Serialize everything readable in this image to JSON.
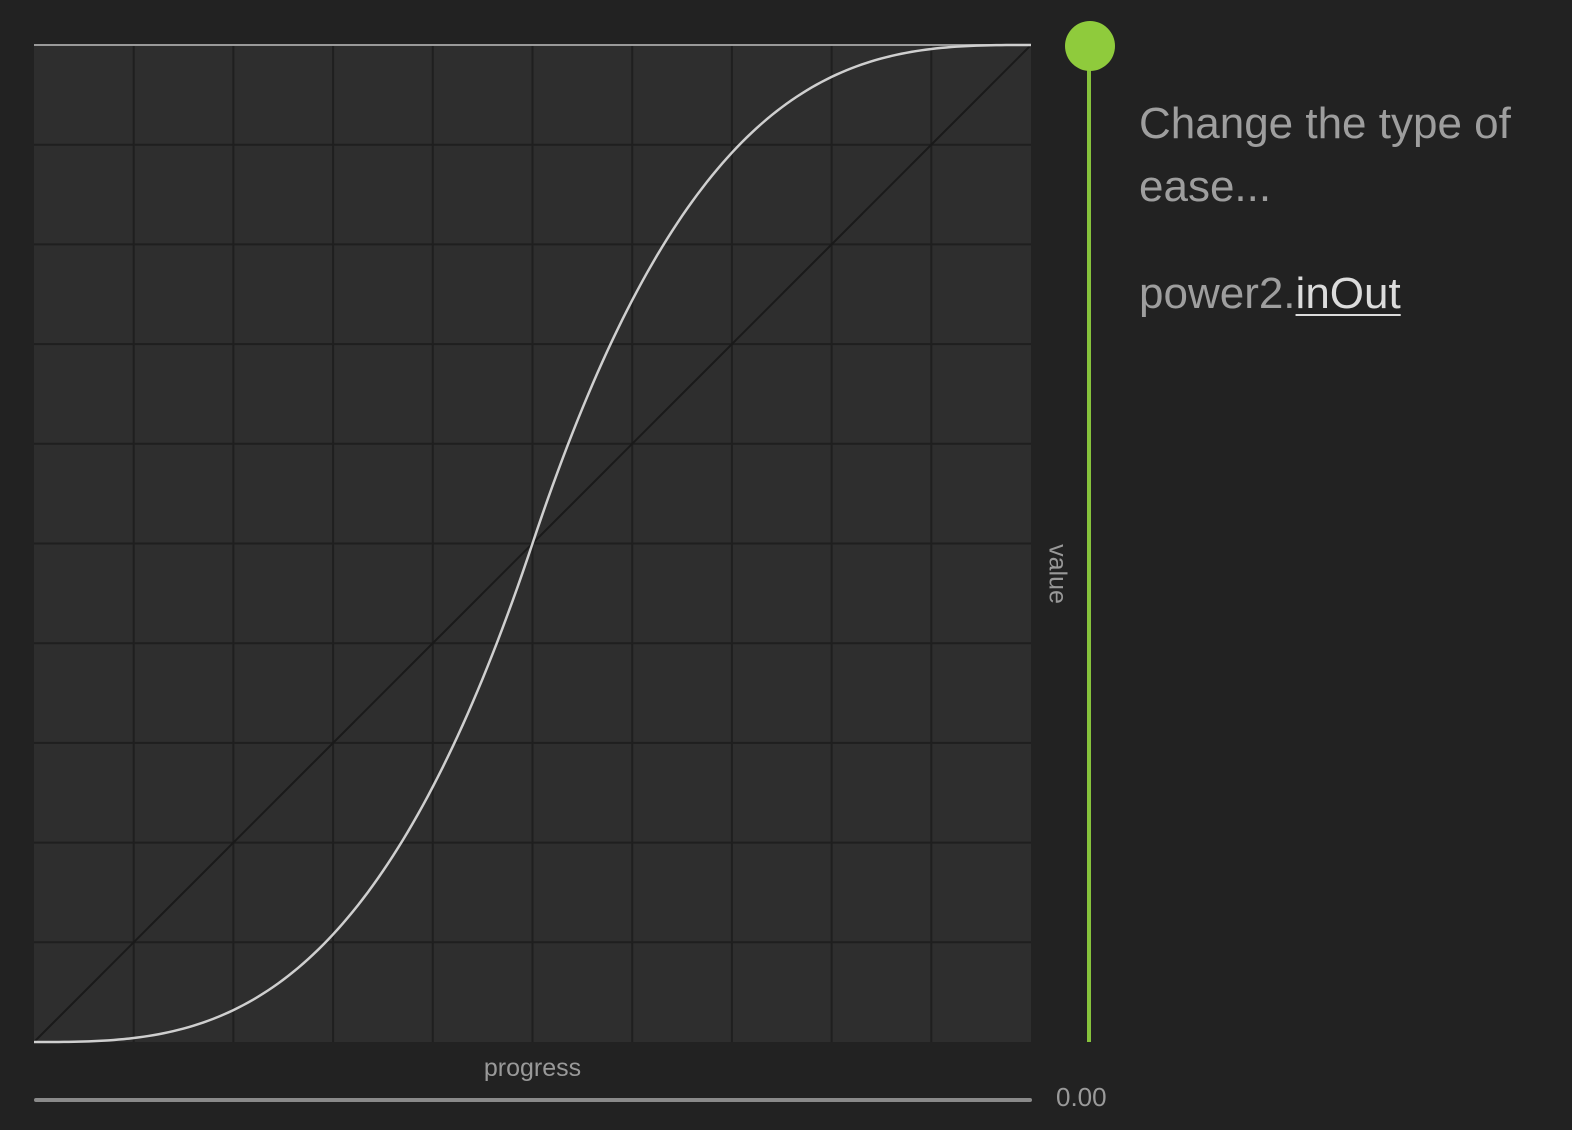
{
  "graph": {
    "progress_label": "progress",
    "value_label": "value",
    "grid_divisions": 10,
    "ease": "power2.inOut",
    "colors": {
      "panel": "#2e2e2e",
      "grid": "#1f1f1f",
      "linear_reference": "#1a1a1a",
      "curve": "#cfcfcf",
      "top_edge": "#9a9a9a"
    }
  },
  "progress_slider": {
    "readout": "0.00",
    "value": 0.0,
    "track_color": "#8a8a8a"
  },
  "value_slider": {
    "value": 1.0,
    "track_color": "#86c23c",
    "knob_color": "#8fcb3c"
  },
  "panel": {
    "prompt": "Change the type of ease...",
    "ease_prefix": "power2.",
    "ease_type": "inOut"
  }
}
